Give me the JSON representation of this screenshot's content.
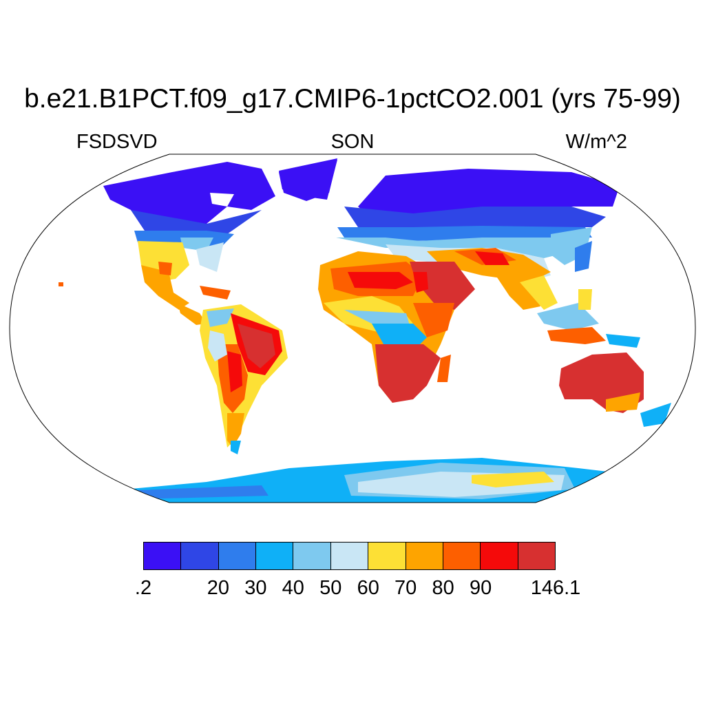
{
  "title": "b.e21.B1PCT.f09_g17.CMIP6-1pctCO2.001 (yrs 75-99)",
  "variable": "FSDSVD",
  "season": "SON",
  "units": "W/m^2",
  "colorbar": {
    "colors": [
      "#3b10f5",
      "#2f46e6",
      "#2f7ded",
      "#0fb0f7",
      "#7ec9ef",
      "#c9e6f5",
      "#fde035",
      "#fea400",
      "#fd5f00",
      "#f50a0a",
      "#d73030"
    ],
    "labels": [
      {
        "text": ".2",
        "boundary": 0
      },
      {
        "text": "20",
        "boundary": 2
      },
      {
        "text": "30",
        "boundary": 3
      },
      {
        "text": "40",
        "boundary": 4
      },
      {
        "text": "50",
        "boundary": 5
      },
      {
        "text": "60",
        "boundary": 6
      },
      {
        "text": "70",
        "boundary": 7
      },
      {
        "text": "80",
        "boundary": 8
      },
      {
        "text": "90",
        "boundary": 9
      },
      {
        "text": "146.1",
        "boundary": 11
      }
    ]
  }
}
